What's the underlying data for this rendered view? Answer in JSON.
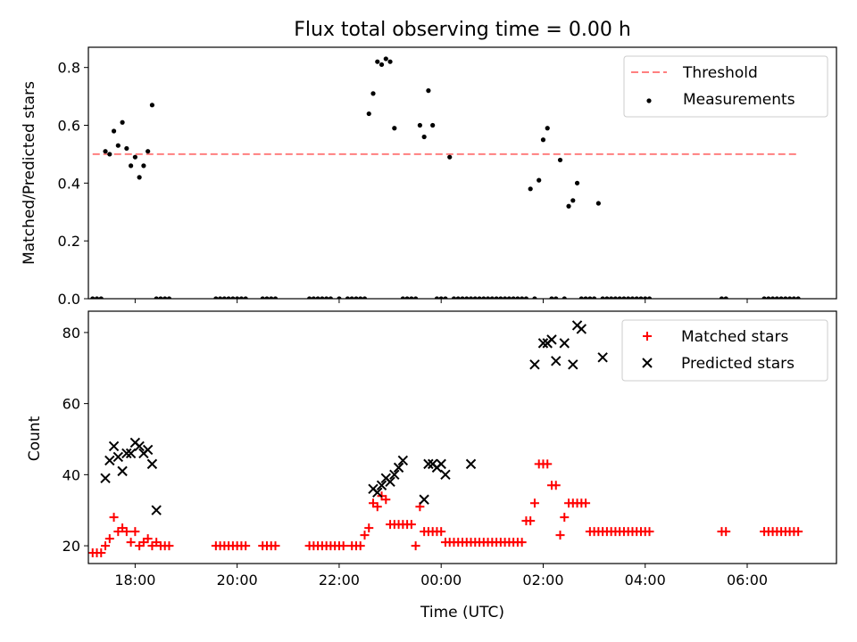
{
  "chart_data": [
    {
      "type": "scatter",
      "title": "Flux total observing time = 0.00 h",
      "ylabel": "Matched/Predicted stars",
      "xlim": [
        "17:05",
        "07:45"
      ],
      "ylim": [
        0,
        0.87
      ],
      "yticks": [
        "0.0",
        "0.2",
        "0.4",
        "0.6",
        "0.8"
      ],
      "grid": false,
      "legend": "top-right",
      "series": [
        {
          "name": "Threshold",
          "style": "dashed-line",
          "color": "#ff7f7f",
          "x": [
            "17:10",
            "07:00"
          ],
          "y": [
            0.5,
            0.5
          ]
        },
        {
          "name": "Measurements",
          "style": "dot",
          "color": "#000000",
          "x": [
            "17:10",
            "17:15",
            "17:20",
            "17:25",
            "17:30",
            "17:35",
            "17:40",
            "17:45",
            "17:50",
            "17:55",
            "18:00",
            "18:05",
            "18:10",
            "18:15",
            "18:20",
            "18:25",
            "18:30",
            "18:35",
            "18:40",
            "19:35",
            "19:40",
            "19:45",
            "19:50",
            "19:55",
            "20:00",
            "20:05",
            "20:10",
            "20:30",
            "20:35",
            "20:40",
            "20:45",
            "21:25",
            "21:30",
            "21:35",
            "21:40",
            "21:45",
            "21:50",
            "22:00",
            "22:10",
            "22:15",
            "22:20",
            "22:25",
            "22:30",
            "22:35",
            "22:40",
            "22:45",
            "22:50",
            "22:55",
            "23:00",
            "23:05",
            "23:15",
            "23:20",
            "23:25",
            "23:30",
            "23:35",
            "23:40",
            "23:45",
            "23:50",
            "23:55",
            "00:00",
            "00:05",
            "00:10",
            "00:15",
            "00:20",
            "00:25",
            "00:30",
            "00:35",
            "00:40",
            "00:45",
            "00:50",
            "00:55",
            "01:00",
            "01:05",
            "01:10",
            "01:15",
            "01:20",
            "01:25",
            "01:30",
            "01:35",
            "01:40",
            "01:45",
            "01:50",
            "01:55",
            "02:00",
            "02:05",
            "02:10",
            "02:15",
            "02:20",
            "02:25",
            "02:30",
            "02:35",
            "02:40",
            "02:45",
            "02:50",
            "02:55",
            "03:00",
            "03:05",
            "03:10",
            "03:15",
            "03:20",
            "03:25",
            "03:30",
            "03:35",
            "03:40",
            "03:45",
            "03:50",
            "03:55",
            "04:00",
            "04:05",
            "05:30",
            "05:35",
            "06:20",
            "06:25",
            "06:30",
            "06:35",
            "06:40",
            "06:45",
            "06:50",
            "06:55",
            "07:00"
          ],
          "y": [
            0,
            0,
            0,
            0.51,
            0.5,
            0.58,
            0.53,
            0.61,
            0.52,
            0.46,
            0.49,
            0.42,
            0.46,
            0.51,
            0.67,
            0,
            0,
            0,
            0,
            0,
            0,
            0,
            0,
            0,
            0,
            0,
            0,
            0,
            0,
            0,
            0,
            0,
            0,
            0,
            0,
            0,
            0,
            0,
            0,
            0,
            0,
            0,
            0,
            0.64,
            0.71,
            0.82,
            0.81,
            0.83,
            0.82,
            0.59,
            0,
            0,
            0,
            0,
            0.6,
            0.56,
            0.72,
            0.6,
            0,
            0,
            0,
            0.49,
            0,
            0,
            0,
            0,
            0,
            0,
            0,
            0,
            0,
            0,
            0,
            0,
            0,
            0,
            0,
            0,
            0,
            0,
            0.38,
            0,
            0.41,
            0.55,
            0.59,
            0,
            0,
            0.48,
            0,
            0.32,
            0.34,
            0.4,
            0,
            0,
            0,
            0,
            0.33,
            0,
            0,
            0,
            0,
            0,
            0,
            0,
            0,
            0,
            0,
            0,
            0,
            0,
            0,
            0,
            0,
            0,
            0,
            0,
            0,
            0,
            0,
            0
          ]
        }
      ]
    },
    {
      "type": "scatter",
      "title": "",
      "xlabel": "Time (UTC)",
      "ylabel": "Count",
      "xlim": [
        "17:05",
        "07:45"
      ],
      "xticks": [
        "18:00",
        "20:00",
        "22:00",
        "00:00",
        "02:00",
        "04:00",
        "06:00"
      ],
      "ylim": [
        15,
        86
      ],
      "yticks": [
        "20",
        "40",
        "60",
        "80"
      ],
      "grid": false,
      "legend": "top-right",
      "series": [
        {
          "name": "Matched stars",
          "marker": "plus",
          "color": "#ff0000",
          "x": [
            "17:10",
            "17:15",
            "17:20",
            "17:25",
            "17:30",
            "17:35",
            "17:40",
            "17:45",
            "17:50",
            "17:55",
            "18:00",
            "18:05",
            "18:10",
            "18:15",
            "18:20",
            "18:25",
            "18:30",
            "18:35",
            "18:40",
            "19:35",
            "19:40",
            "19:45",
            "19:50",
            "19:55",
            "20:00",
            "20:05",
            "20:10",
            "20:30",
            "20:35",
            "20:40",
            "20:45",
            "21:25",
            "21:30",
            "21:35",
            "21:40",
            "21:45",
            "21:50",
            "21:55",
            "22:00",
            "22:05",
            "22:15",
            "22:20",
            "22:25",
            "22:30",
            "22:35",
            "22:40",
            "22:45",
            "22:50",
            "22:55",
            "23:00",
            "23:05",
            "23:10",
            "23:15",
            "23:20",
            "23:25",
            "23:30",
            "23:35",
            "23:40",
            "23:45",
            "23:50",
            "23:55",
            "00:00",
            "00:05",
            "00:10",
            "00:15",
            "00:20",
            "00:25",
            "00:30",
            "00:35",
            "00:40",
            "00:45",
            "00:50",
            "00:55",
            "01:00",
            "01:05",
            "01:10",
            "01:15",
            "01:20",
            "01:25",
            "01:30",
            "01:35",
            "01:40",
            "01:45",
            "01:50",
            "01:55",
            "02:00",
            "02:05",
            "02:10",
            "02:15",
            "02:20",
            "02:25",
            "02:30",
            "02:35",
            "02:40",
            "02:45",
            "02:50",
            "02:55",
            "03:00",
            "03:05",
            "03:10",
            "03:15",
            "03:20",
            "03:25",
            "03:30",
            "03:35",
            "03:40",
            "03:45",
            "03:50",
            "03:55",
            "04:00",
            "04:05",
            "05:30",
            "05:35",
            "06:20",
            "06:25",
            "06:30",
            "06:35",
            "06:40",
            "06:45",
            "06:50",
            "06:55",
            "07:00"
          ],
          "y": [
            18,
            18,
            18,
            20,
            22,
            28,
            24,
            25,
            24,
            21,
            24,
            20,
            21,
            22,
            20,
            21,
            20,
            20,
            20,
            20,
            20,
            20,
            20,
            20,
            20,
            20,
            20,
            20,
            20,
            20,
            20,
            20,
            20,
            20,
            20,
            20,
            20,
            20,
            20,
            20,
            20,
            20,
            20,
            23,
            25,
            32,
            31,
            34,
            33,
            26,
            26,
            26,
            26,
            26,
            26,
            20,
            31,
            24,
            24,
            24,
            24,
            24,
            21,
            21,
            21,
            21,
            21,
            21,
            21,
            21,
            21,
            21,
            21,
            21,
            21,
            21,
            21,
            21,
            21,
            21,
            21,
            27,
            27,
            32,
            43,
            43,
            43,
            37,
            37,
            23,
            28,
            32,
            32,
            32,
            32,
            32,
            24,
            24,
            24,
            24,
            24,
            24,
            24,
            24,
            24,
            24,
            24,
            24,
            24,
            24,
            24,
            24,
            24,
            24,
            24,
            24,
            24,
            24,
            24,
            24,
            24,
            24
          ]
        },
        {
          "name": "Predicted stars",
          "marker": "x",
          "color": "#000000",
          "x": [
            "17:25",
            "17:30",
            "17:35",
            "17:40",
            "17:45",
            "17:50",
            "17:55",
            "18:00",
            "18:05",
            "18:10",
            "18:15",
            "18:20",
            "18:25",
            "22:40",
            "22:45",
            "22:50",
            "22:55",
            "23:00",
            "23:05",
            "23:10",
            "23:15",
            "23:40",
            "23:45",
            "23:50",
            "23:55",
            "00:00",
            "00:05",
            "00:35",
            "01:50",
            "02:00",
            "02:05",
            "02:10",
            "02:15",
            "02:25",
            "02:35",
            "02:40",
            "02:45",
            "03:10"
          ],
          "y": [
            39,
            44,
            48,
            45,
            41,
            46,
            46,
            49,
            48,
            46,
            47,
            43,
            30,
            36,
            35,
            37,
            39,
            38,
            40,
            42,
            44,
            33,
            43,
            43,
            42,
            43,
            40,
            43,
            71,
            77,
            77,
            78,
            72,
            77,
            71,
            82,
            81,
            73
          ]
        }
      ]
    }
  ]
}
